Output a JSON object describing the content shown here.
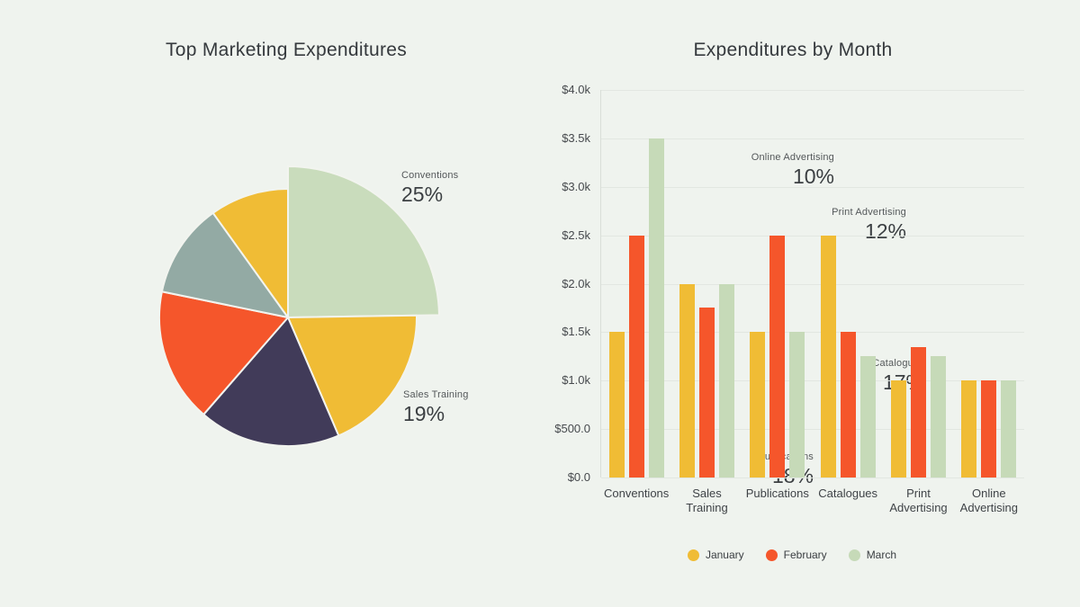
{
  "page": {
    "background_color": "#eff3ee"
  },
  "chart_data": [
    {
      "type": "pie",
      "title": "Top Marketing Expenditures",
      "labels": [
        "Conventions",
        "Sales Training",
        "Publications",
        "Catalogues",
        "Print Advertising",
        "Online Advertising"
      ],
      "values": [
        25,
        19,
        18,
        17,
        12,
        10
      ],
      "value_suffix": "%",
      "colors": [
        "#c9dcbc",
        "#f0bc35",
        "#413b59",
        "#f5562b",
        "#93aaa4",
        "#f0bc35"
      ],
      "start_angle_deg": 0,
      "direction": "clockwise",
      "pulled_slice": "Conventions",
      "slice_labels": [
        "25%",
        "19%",
        "18%",
        "17%",
        "12%",
        "10%"
      ]
    },
    {
      "type": "bar",
      "title": "Expenditures by Month",
      "categories": [
        "Conventions",
        "Sales Training",
        "Publications",
        "Catalogues",
        "Print Advertising",
        "Online Advertising"
      ],
      "series": [
        {
          "name": "January",
          "color": "#f0bc35",
          "values": [
            1500,
            2000,
            1500,
            2500,
            1000,
            1000
          ]
        },
        {
          "name": "February",
          "color": "#f5562b",
          "values": [
            2500,
            1750,
            2500,
            1500,
            1350,
            1000
          ]
        },
        {
          "name": "March",
          "color": "#c6dab8",
          "values": [
            3500,
            2000,
            1500,
            1250,
            1250,
            1000
          ]
        }
      ],
      "ylim": [
        0,
        4000
      ],
      "y_tick_values": [
        4000,
        3500,
        3000,
        2500,
        2000,
        1500,
        1000,
        500,
        0
      ],
      "y_tick_labels": [
        "$4.0k",
        "$3.5k",
        "$3.0k",
        "$2.5k",
        "$2.0k",
        "$1.5k",
        "$1.0k",
        "$500.0",
        "$0.0"
      ],
      "grid": true,
      "legend_position": "bottom"
    }
  ]
}
